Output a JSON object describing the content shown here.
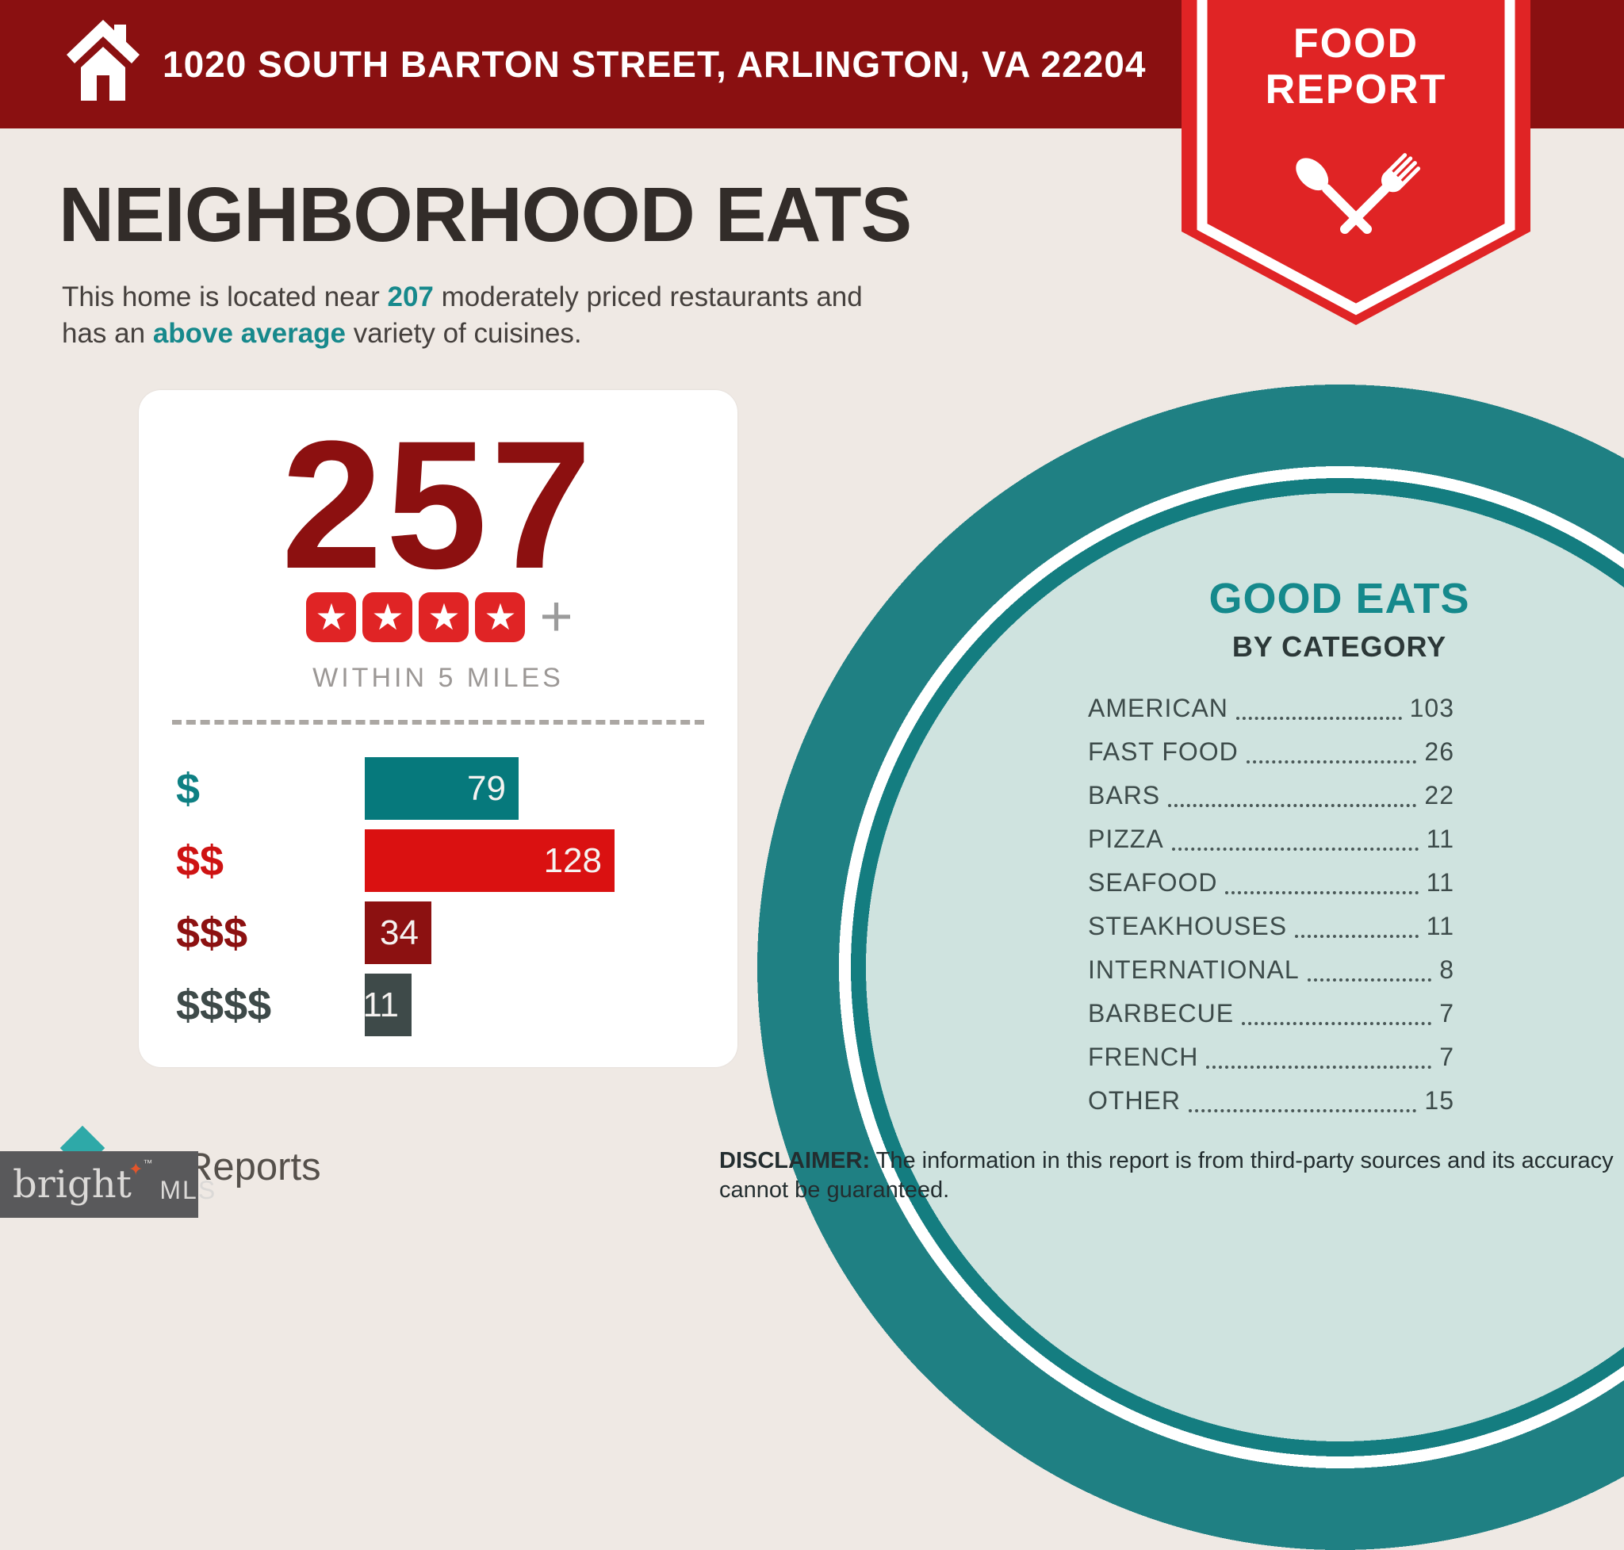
{
  "header": {
    "address": "1020 SOUTH BARTON STREET, ARLINGTON, VA 22204"
  },
  "badge": {
    "line1": "FOOD",
    "line2": "REPORT"
  },
  "page": {
    "title": "NEIGHBORHOOD EATS"
  },
  "subtitle": {
    "line1": [
      {
        "text": "This home is located near "
      },
      {
        "text": "207",
        "highlight": true
      },
      {
        "text": " moderately priced restaurants and"
      }
    ],
    "line2": [
      {
        "text": "has an "
      },
      {
        "text": "above average",
        "highlight": true
      },
      {
        "text": " variety of cuisines."
      }
    ]
  },
  "summary_card": {
    "total": "257",
    "rating_stars": 4,
    "rating_plus": "+",
    "radius_label": "WITHIN 5 MILES"
  },
  "chart_data": {
    "type": "bar",
    "orientation": "horizontal",
    "title": "",
    "categories": [
      "$",
      "$$",
      "$$$",
      "$$$$"
    ],
    "values": [
      79,
      128,
      34,
      11
    ],
    "xlim": [
      0,
      128
    ],
    "bar_colors": [
      "#06797C",
      "#DA1111",
      "#8C1111",
      "#3E4A49"
    ],
    "label_colors": [
      "#0E8083",
      "#CE1313",
      "#8C1111",
      "#3E4A49"
    ],
    "total": 257
  },
  "good_eats": {
    "title": "GOOD EATS",
    "subtitle": "BY CATEGORY",
    "items": [
      {
        "label": "AMERICAN",
        "value": "103"
      },
      {
        "label": "FAST FOOD",
        "value": "26"
      },
      {
        "label": "BARS",
        "value": "22"
      },
      {
        "label": "PIZZA",
        "value": "11"
      },
      {
        "label": "SEAFOOD",
        "value": "11"
      },
      {
        "label": "STEAKHOUSES",
        "value": "11"
      },
      {
        "label": "INTERNATIONAL",
        "value": "8"
      },
      {
        "label": "BARBECUE",
        "value": "7"
      },
      {
        "label": "FRENCH",
        "value": "7"
      },
      {
        "label": "OTHER",
        "value": "15"
      }
    ]
  },
  "disclaimer": {
    "label": "DISCLAIMER:",
    "text": " The information in this report is from third-party sources and its accuracy cannot be guaranteed."
  },
  "branding": {
    "logo_text": "Reports",
    "watermark_brand": "bright",
    "watermark_spark": "✦",
    "watermark_tm": "™",
    "watermark_suffix": "MLS"
  },
  "icons": {
    "home": "house-with-chimney",
    "badge": "crossed-spoon-and-fork",
    "star": "★",
    "logo": "teal-house-diamond"
  },
  "colors": {
    "header_red": "#8A1011",
    "ribbon_red": "#E02425",
    "dark_red": "#8C1010",
    "teal": "#17898C",
    "ring_teal": "#1F8083",
    "mint": "#CFE3DF",
    "background": "#EFE9E4",
    "slate": "#3E4A49"
  }
}
